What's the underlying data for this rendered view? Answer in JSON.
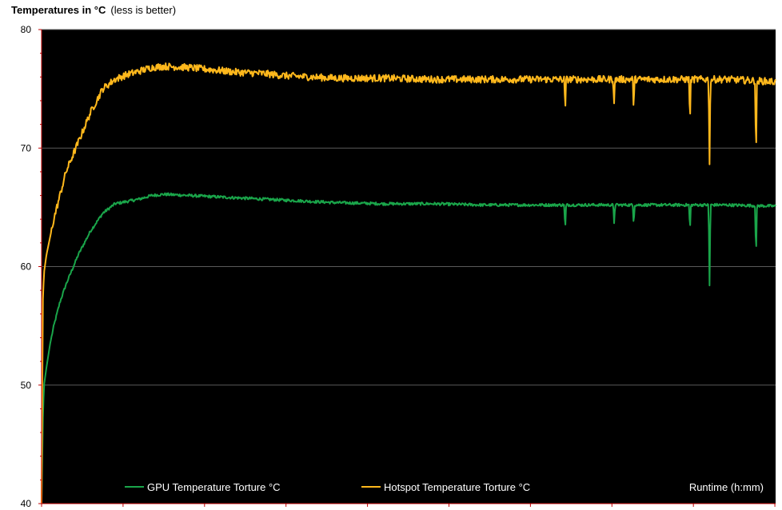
{
  "title": {
    "main": "Temperatures in °C",
    "subtitle": "(less is better)"
  },
  "colors": {
    "plot_background": "#000000",
    "gridline": "#5a5a5a",
    "axis": "#c00000",
    "gpu": "#1aa54a",
    "hotspot": "#ffb81c",
    "legend_text": "#ffffff"
  },
  "chart_data": {
    "type": "line",
    "title": "Temperatures in °C",
    "subtitle": "(less is better)",
    "xlabel": "Runtime  (h:mm)",
    "ylabel": "",
    "ylim": [
      40,
      80
    ],
    "yticks": [
      40,
      50,
      60,
      70,
      80
    ],
    "grid": true,
    "legend_placement": "bottom",
    "x_unit": "minutes",
    "xlim": [
      0,
      30
    ],
    "series": [
      {
        "name": "GPU Temperature Torture °C",
        "color": "#1aa54a",
        "x": [
          0,
          0.05,
          0.1,
          0.2,
          0.35,
          0.5,
          0.75,
          1.0,
          1.5,
          2.0,
          2.5,
          3.0,
          3.5,
          4.0,
          4.5,
          5.0,
          6.0,
          7.0,
          8.0,
          9.0,
          10.0,
          11.0,
          12.0,
          14.0,
          16.0,
          18.0,
          20.0,
          22.0,
          24.0,
          26.0,
          28.0,
          30.0
        ],
        "values": [
          40,
          47,
          50,
          51.5,
          53.5,
          55,
          57,
          58.5,
          61,
          63,
          64.5,
          65.3,
          65.5,
          65.7,
          66.0,
          66.1,
          66.0,
          65.9,
          65.8,
          65.7,
          65.6,
          65.5,
          65.4,
          65.3,
          65.3,
          65.2,
          65.2,
          65.2,
          65.2,
          65.2,
          65.2,
          65.1
        ],
        "dips": [
          {
            "x": 21.4,
            "value": 63.0
          },
          {
            "x": 23.4,
            "value": 63.7
          },
          {
            "x": 24.2,
            "value": 63.6
          },
          {
            "x": 26.5,
            "value": 63.0
          },
          {
            "x": 27.3,
            "value": 58.4
          },
          {
            "x": 29.2,
            "value": 60.7
          }
        ]
      },
      {
        "name": "Hotspot Temperature Torture °C",
        "color": "#ffb81c",
        "x": [
          0,
          0.05,
          0.1,
          0.2,
          0.35,
          0.5,
          0.75,
          1.0,
          1.5,
          2.0,
          2.5,
          3.0,
          3.5,
          4.0,
          4.5,
          5.0,
          6.0,
          7.0,
          8.0,
          9.0,
          10.0,
          11.0,
          12.0,
          14.0,
          16.0,
          18.0,
          20.0,
          22.0,
          24.0,
          26.0,
          28.0,
          30.0
        ],
        "values": [
          40,
          57,
          59.5,
          61,
          62.5,
          64,
          66,
          68,
          70.5,
          73,
          75,
          75.8,
          76.2,
          76.5,
          76.8,
          76.9,
          76.8,
          76.6,
          76.4,
          76.3,
          76.1,
          76.0,
          75.9,
          75.9,
          75.8,
          75.8,
          75.8,
          75.8,
          75.8,
          75.8,
          75.8,
          75.6
        ],
        "dips": [
          {
            "x": 21.4,
            "value": 73.1
          },
          {
            "x": 23.4,
            "value": 73.8
          },
          {
            "x": 24.2,
            "value": 73.3
          },
          {
            "x": 26.5,
            "value": 72.2
          },
          {
            "x": 27.3,
            "value": 68.7
          },
          {
            "x": 29.2,
            "value": 69.0
          }
        ]
      }
    ]
  }
}
